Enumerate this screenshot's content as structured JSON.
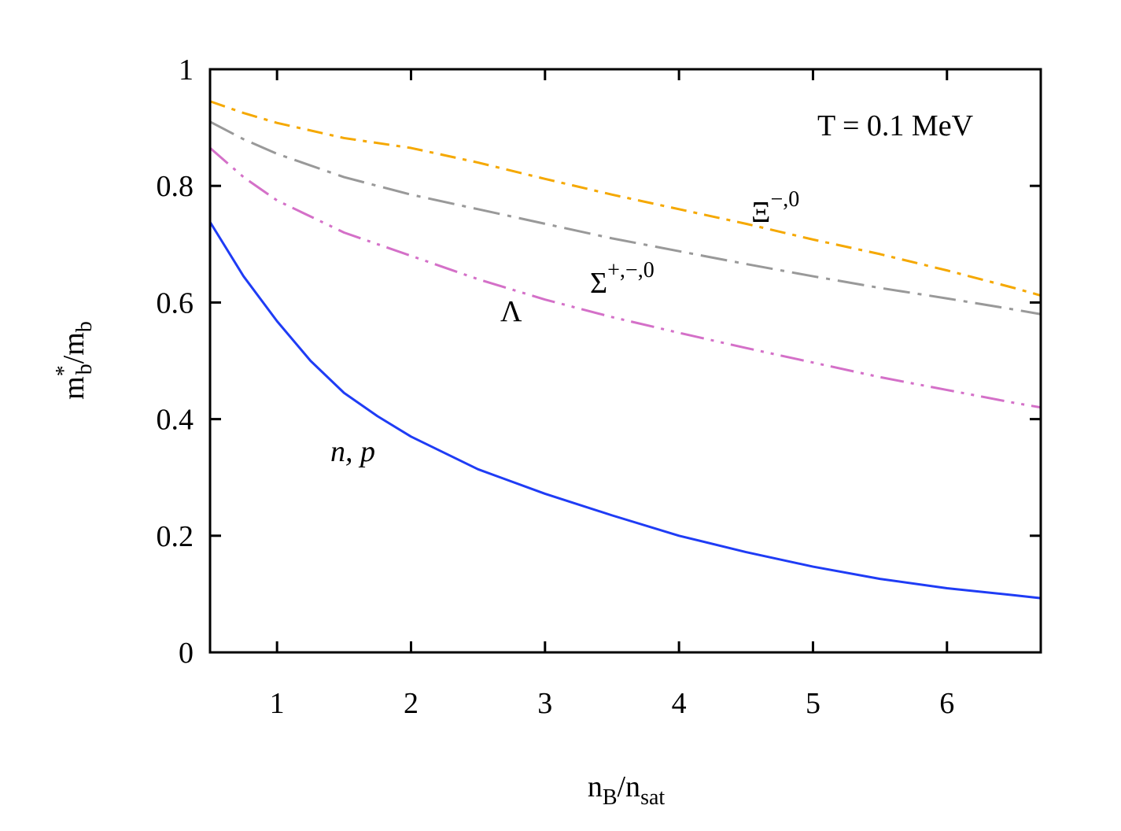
{
  "chart_data": {
    "type": "line",
    "xlabel": "n_B/n_sat",
    "ylabel": "m*_b/m_b",
    "xlim": [
      0.5,
      6.7
    ],
    "ylim": [
      0,
      1
    ],
    "xticks": [
      1,
      2,
      3,
      4,
      5,
      6
    ],
    "yticks": [
      0,
      0.2,
      0.4,
      0.6,
      0.8,
      1
    ],
    "xtick_labels": [
      "1",
      "2",
      "3",
      "4",
      "5",
      "6"
    ],
    "ytick_labels": [
      "0",
      "0.2",
      "0.4",
      "0.6",
      "0.8",
      "1"
    ],
    "grid": false,
    "annotation": "T = 0.1 MeV",
    "series": [
      {
        "name": "n, p",
        "color": "#1f3cf5",
        "dash": "solid",
        "x": [
          0.5,
          0.75,
          1.0,
          1.25,
          1.5,
          1.75,
          2.0,
          2.5,
          3.0,
          3.5,
          4.0,
          4.5,
          5.0,
          5.5,
          6.0,
          6.5,
          6.7
        ],
        "y": [
          0.738,
          0.645,
          0.568,
          0.5,
          0.445,
          0.405,
          0.37,
          0.314,
          0.272,
          0.235,
          0.2,
          0.172,
          0.147,
          0.126,
          0.11,
          0.098,
          0.093
        ]
      },
      {
        "name": "Λ",
        "color": "#d470c8",
        "dash": "dash-dot-dot",
        "x": [
          0.5,
          0.75,
          1.0,
          1.5,
          2.0,
          2.5,
          3.0,
          3.5,
          4.0,
          4.5,
          5.0,
          5.5,
          6.0,
          6.5,
          6.7
        ],
        "y": [
          0.865,
          0.815,
          0.775,
          0.72,
          0.68,
          0.64,
          0.605,
          0.575,
          0.548,
          0.522,
          0.497,
          0.472,
          0.45,
          0.428,
          0.42
        ]
      },
      {
        "name": "Σ+,−,0",
        "color": "#999999",
        "dash": "dash-dot",
        "x": [
          0.5,
          0.75,
          1.0,
          1.5,
          2.0,
          2.5,
          3.0,
          3.5,
          4.0,
          4.5,
          5.0,
          5.5,
          6.0,
          6.5,
          6.7
        ],
        "y": [
          0.91,
          0.88,
          0.855,
          0.815,
          0.785,
          0.76,
          0.735,
          0.71,
          0.688,
          0.666,
          0.645,
          0.625,
          0.607,
          0.588,
          0.58
        ]
      },
      {
        "name": "Ξ−,0",
        "color": "#f5a800",
        "dash": "dash-dot-long",
        "x": [
          0.5,
          0.75,
          1.0,
          1.5,
          2.0,
          2.5,
          3.0,
          3.5,
          4.0,
          4.5,
          5.0,
          5.5,
          6.0,
          6.5,
          6.7
        ],
        "y": [
          0.945,
          0.925,
          0.908,
          0.882,
          0.865,
          0.84,
          0.812,
          0.785,
          0.76,
          0.735,
          0.708,
          0.683,
          0.655,
          0.625,
          0.612
        ]
      }
    ],
    "series_labels": {
      "np": "n, p",
      "lambda": "Λ",
      "sigma_base": "Σ",
      "sigma_sup": "+,−,0",
      "xi_base": "Ξ",
      "xi_sup": "−,0"
    },
    "axis_label_parts": {
      "x_base": "n",
      "x_sub": "B",
      "x_sep": "/n",
      "x_sub2": "sat",
      "y_base": "m",
      "y_sup": "*",
      "y_sub": "b",
      "y_sep": "/m",
      "y_sub2": "b"
    }
  }
}
